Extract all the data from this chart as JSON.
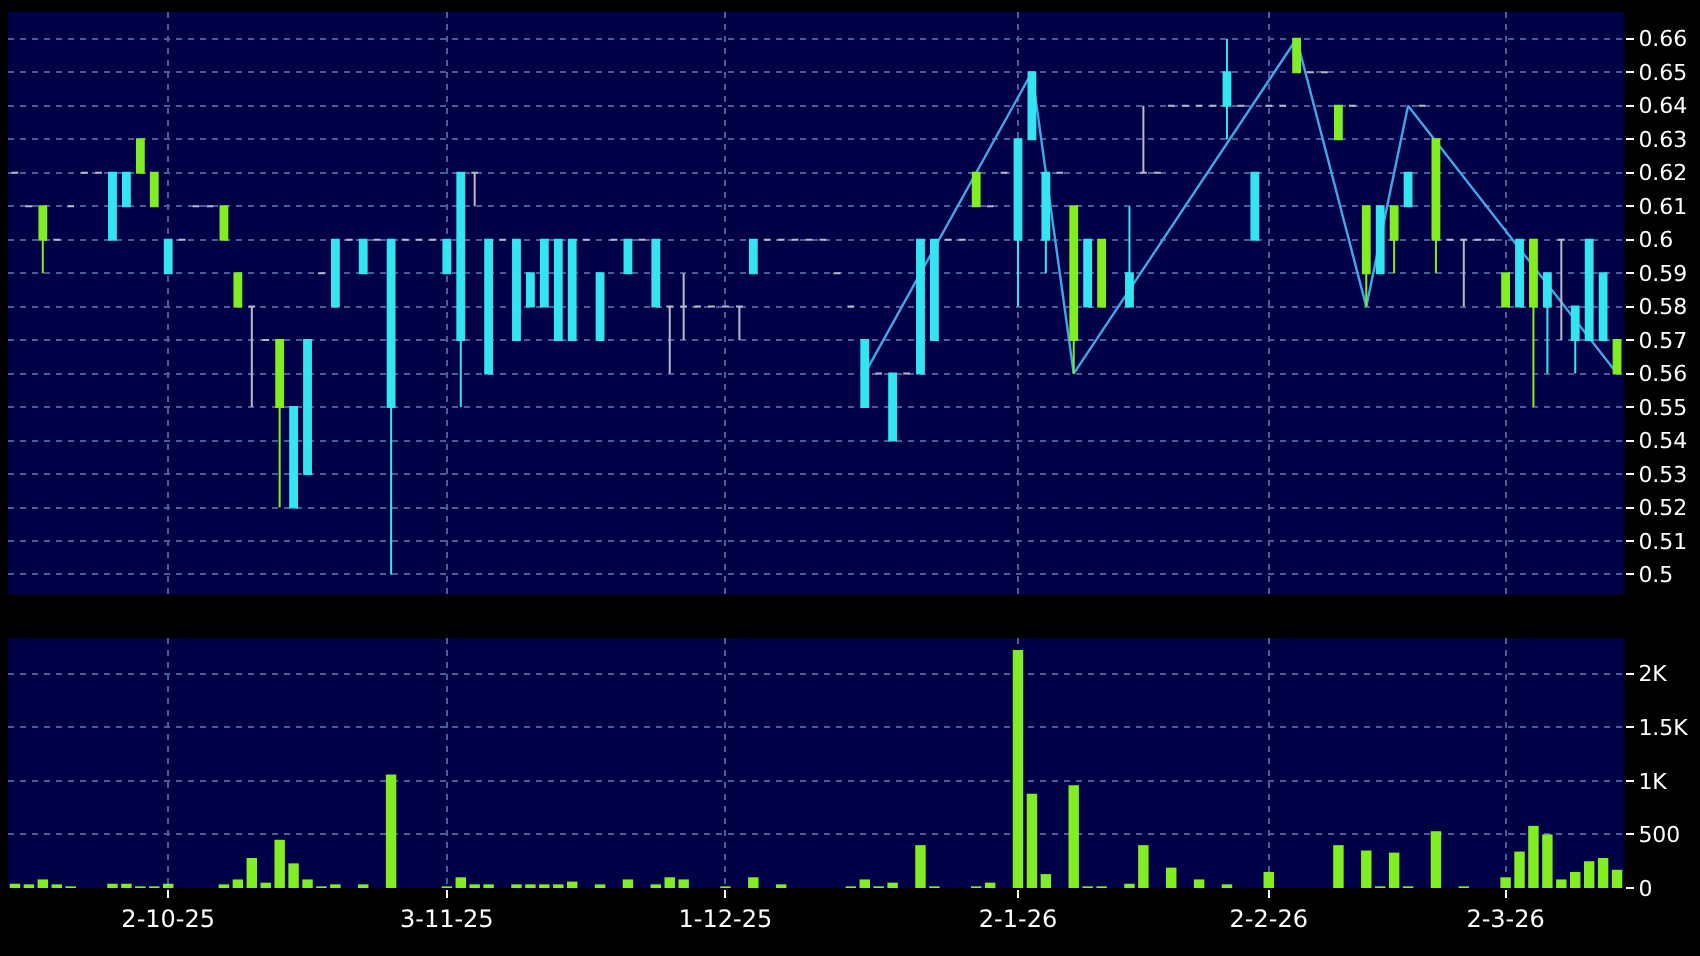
{
  "chart_data": [
    {
      "type": "candlestick",
      "categories": [
        null,
        null,
        null,
        null,
        null,
        null,
        null,
        null,
        null,
        null,
        null,
        "2-10-25",
        null,
        null,
        null,
        null,
        null,
        null,
        null,
        null,
        null,
        null,
        null,
        null,
        null,
        null,
        null,
        null,
        null,
        null,
        null,
        "3-11-25",
        null,
        null,
        null,
        null,
        null,
        null,
        null,
        null,
        null,
        null,
        null,
        null,
        null,
        null,
        null,
        null,
        null,
        null,
        null,
        "1-12-25",
        null,
        null,
        null,
        null,
        null,
        null,
        null,
        null,
        null,
        null,
        null,
        null,
        null,
        null,
        null,
        null,
        null,
        null,
        null,
        null,
        "2-1-26",
        null,
        null,
        null,
        null,
        null,
        null,
        null,
        null,
        null,
        null,
        null,
        null,
        null,
        null,
        null,
        null,
        null,
        "2-2-26",
        null,
        null,
        null,
        null,
        null,
        null,
        null,
        null,
        null,
        null,
        null,
        null,
        null,
        null,
        null,
        null,
        "2-3-26",
        null,
        null,
        null,
        null,
        null,
        null,
        null,
        null
      ],
      "ohlc": [
        [
          0.62,
          0.62,
          0.62,
          0.62
        ],
        [
          0.61,
          0.61,
          0.61,
          0.61
        ],
        [
          0.61,
          0.61,
          0.59,
          0.6
        ],
        [
          0.6,
          0.6,
          0.6,
          0.6
        ],
        [
          0.61,
          0.61,
          0.61,
          0.61
        ],
        [
          0.62,
          0.62,
          0.62,
          0.62
        ],
        [
          0.62,
          0.62,
          0.62,
          0.62
        ],
        [
          0.6,
          0.62,
          0.6,
          0.62
        ],
        [
          0.61,
          0.62,
          0.61,
          0.62
        ],
        [
          0.63,
          0.63,
          0.62,
          0.62
        ],
        [
          0.62,
          0.62,
          0.61,
          0.61
        ],
        [
          0.59,
          0.6,
          0.59,
          0.6
        ],
        [
          0.6,
          0.6,
          0.6,
          0.6
        ],
        [
          0.61,
          0.61,
          0.61,
          0.61
        ],
        [
          0.61,
          0.61,
          0.61,
          0.61
        ],
        [
          0.61,
          0.61,
          0.6,
          0.6
        ],
        [
          0.59,
          0.59,
          0.58,
          0.58
        ],
        [
          0.58,
          0.58,
          0.55,
          0.58
        ],
        [
          0.57,
          0.57,
          0.57,
          0.57
        ],
        [
          0.57,
          0.57,
          0.52,
          0.55
        ],
        [
          0.52,
          0.55,
          0.52,
          0.55
        ],
        [
          0.53,
          0.57,
          0.53,
          0.57
        ],
        [
          0.59,
          0.59,
          0.59,
          0.59
        ],
        [
          0.58,
          0.6,
          0.58,
          0.6
        ],
        [
          0.6,
          0.6,
          0.6,
          0.6
        ],
        [
          0.59,
          0.6,
          0.59,
          0.6
        ],
        [
          0.6,
          0.6,
          0.6,
          0.6
        ],
        [
          0.55,
          0.6,
          0.5,
          0.6
        ],
        [
          0.6,
          0.6,
          0.6,
          0.6
        ],
        [
          0.6,
          0.6,
          0.6,
          0.6
        ],
        [
          0.6,
          0.6,
          0.6,
          0.6
        ],
        [
          0.59,
          0.6,
          0.59,
          0.6
        ],
        [
          0.57,
          0.62,
          0.55,
          0.62
        ],
        [
          0.62,
          0.62,
          0.61,
          0.62
        ],
        [
          0.56,
          0.6,
          0.56,
          0.6
        ],
        [
          0.6,
          0.6,
          0.6,
          0.6
        ],
        [
          0.57,
          0.6,
          0.57,
          0.6
        ],
        [
          0.58,
          0.59,
          0.58,
          0.59
        ],
        [
          0.58,
          0.6,
          0.58,
          0.6
        ],
        [
          0.57,
          0.6,
          0.57,
          0.6
        ],
        [
          0.57,
          0.6,
          0.57,
          0.6
        ],
        [
          0.6,
          0.6,
          0.6,
          0.6
        ],
        [
          0.57,
          0.59,
          0.57,
          0.59
        ],
        [
          0.6,
          0.6,
          0.6,
          0.6
        ],
        [
          0.59,
          0.6,
          0.59,
          0.6
        ],
        [
          0.6,
          0.6,
          0.6,
          0.6
        ],
        [
          0.58,
          0.6,
          0.58,
          0.6
        ],
        [
          0.58,
          0.58,
          0.56,
          0.58
        ],
        [
          0.58,
          0.59,
          0.57,
          0.58
        ],
        [
          0.58,
          0.58,
          0.58,
          0.58
        ],
        [
          0.58,
          0.58,
          0.58,
          0.58
        ],
        [
          0.58,
          0.58,
          0.58,
          0.58
        ],
        [
          0.58,
          0.58,
          0.57,
          0.58
        ],
        [
          0.59,
          0.6,
          0.59,
          0.6
        ],
        [
          0.6,
          0.6,
          0.6,
          0.6
        ],
        [
          0.6,
          0.6,
          0.6,
          0.6
        ],
        [
          0.6,
          0.6,
          0.6,
          0.6
        ],
        [
          0.6,
          0.6,
          0.6,
          0.6
        ],
        [
          0.6,
          0.6,
          0.6,
          0.6
        ],
        [
          0.59,
          0.59,
          0.59,
          0.59
        ],
        [
          0.58,
          0.58,
          0.58,
          0.58
        ],
        [
          0.55,
          0.57,
          0.55,
          0.57
        ],
        [
          0.56,
          0.56,
          0.56,
          0.56
        ],
        [
          0.54,
          0.56,
          0.54,
          0.56
        ],
        [
          0.56,
          0.56,
          0.56,
          0.56
        ],
        [
          0.56,
          0.6,
          0.56,
          0.6
        ],
        [
          0.57,
          0.6,
          0.57,
          0.6
        ],
        [
          0.6,
          0.6,
          0.6,
          0.6
        ],
        [
          0.6,
          0.6,
          0.6,
          0.6
        ],
        [
          0.62,
          0.62,
          0.61,
          0.61
        ],
        [
          0.61,
          0.61,
          0.61,
          0.61
        ],
        [
          0.62,
          0.62,
          0.62,
          0.62
        ],
        [
          0.6,
          0.63,
          0.58,
          0.63
        ],
        [
          0.63,
          0.65,
          0.63,
          0.65
        ],
        [
          0.6,
          0.62,
          0.59,
          0.62
        ],
        [
          0.62,
          0.62,
          0.62,
          0.62
        ],
        [
          0.61,
          0.61,
          0.56,
          0.57
        ],
        [
          0.58,
          0.6,
          0.58,
          0.6
        ],
        [
          0.6,
          0.6,
          0.58,
          0.58
        ],
        null,
        [
          0.58,
          0.61,
          0.58,
          0.59
        ],
        [
          0.62,
          0.64,
          0.62,
          0.62
        ],
        [
          0.62,
          0.62,
          0.62,
          0.62
        ],
        [
          0.64,
          0.64,
          0.64,
          0.64
        ],
        [
          0.64,
          0.64,
          0.64,
          0.64
        ],
        [
          0.64,
          0.64,
          0.64,
          0.64
        ],
        [
          0.64,
          0.64,
          0.64,
          0.64
        ],
        [
          0.64,
          0.66,
          0.63,
          0.65
        ],
        [
          0.64,
          0.64,
          0.64,
          0.64
        ],
        [
          0.6,
          0.62,
          0.6,
          0.62
        ],
        [
          0.64,
          0.64,
          0.64,
          0.64
        ],
        [
          0.64,
          0.64,
          0.64,
          0.64
        ],
        [
          0.66,
          0.66,
          0.65,
          0.65
        ],
        [
          0.65,
          0.65,
          0.65,
          0.65
        ],
        [
          0.65,
          0.65,
          0.65,
          0.65
        ],
        [
          0.64,
          0.64,
          0.63,
          0.63
        ],
        [
          0.64,
          0.64,
          0.64,
          0.64
        ],
        [
          0.61,
          0.61,
          0.58,
          0.59
        ],
        [
          0.59,
          0.61,
          0.59,
          0.61
        ],
        [
          0.61,
          0.61,
          0.59,
          0.6
        ],
        [
          0.61,
          0.62,
          0.61,
          0.62
        ],
        [
          0.64,
          0.64,
          0.64,
          0.64
        ],
        [
          0.63,
          0.63,
          0.59,
          0.6
        ],
        [
          0.6,
          0.6,
          0.6,
          0.6
        ],
        [
          0.6,
          0.6,
          0.58,
          0.6
        ],
        [
          0.6,
          0.6,
          0.6,
          0.6
        ],
        [
          0.6,
          0.6,
          0.6,
          0.6
        ],
        [
          0.59,
          0.59,
          0.58,
          0.58
        ],
        [
          0.58,
          0.6,
          0.58,
          0.6
        ],
        [
          0.6,
          0.6,
          0.55,
          0.58
        ],
        [
          0.58,
          0.59,
          0.56,
          0.59
        ],
        [
          0.6,
          0.6,
          0.57,
          0.6
        ],
        [
          0.57,
          0.58,
          0.56,
          0.58
        ],
        [
          0.57,
          0.6,
          0.57,
          0.6
        ],
        [
          0.57,
          0.59,
          0.57,
          0.59
        ],
        [
          0.57,
          0.57,
          0.56,
          0.56
        ]
      ],
      "colors": [
        "#b8b8c8",
        "#b8b8c8",
        "#80ee20",
        "#b8b8c8",
        "#b8b8c8",
        "#b8b8c8",
        "#b8b8c8",
        "#33e5f0",
        "#33e5f0",
        "#80ee20",
        "#80ee20",
        "#33e5f0",
        "#b8b8c8",
        "#b8b8c8",
        "#b8b8c8",
        "#80ee20",
        "#80ee20",
        "#b8b8c8",
        "#b8b8c8",
        "#80ee20",
        "#33e5f0",
        "#33e5f0",
        "#b8b8c8",
        "#33e5f0",
        "#b8b8c8",
        "#33e5f0",
        "#b8b8c8",
        "#33e5f0",
        "#b8b8c8",
        "#b8b8c8",
        "#b8b8c8",
        "#33e5f0",
        "#33e5f0",
        "#b8b8c8",
        "#33e5f0",
        "#b8b8c8",
        "#33e5f0",
        "#33e5f0",
        "#33e5f0",
        "#33e5f0",
        "#33e5f0",
        "#b8b8c8",
        "#33e5f0",
        "#b8b8c8",
        "#33e5f0",
        "#b8b8c8",
        "#33e5f0",
        "#b8b8c8",
        "#b8b8c8",
        "#b8b8c8",
        "#b8b8c8",
        "#b8b8c8",
        "#b8b8c8",
        "#33e5f0",
        "#b8b8c8",
        "#b8b8c8",
        "#b8b8c8",
        "#b8b8c8",
        "#b8b8c8",
        "#b8b8c8",
        "#b8b8c8",
        "#33e5f0",
        "#b8b8c8",
        "#33e5f0",
        "#b8b8c8",
        "#33e5f0",
        "#33e5f0",
        "#b8b8c8",
        "#b8b8c8",
        "#80ee20",
        "#b8b8c8",
        "#b8b8c8",
        "#33e5f0",
        "#33e5f0",
        "#33e5f0",
        "#b8b8c8",
        "#80ee20",
        "#33e5f0",
        "#80ee20",
        null,
        "#33e5f0",
        "#b8b8c8",
        "#b8b8c8",
        "#b8b8c8",
        "#b8b8c8",
        "#b8b8c8",
        "#b8b8c8",
        "#33e5f0",
        "#b8b8c8",
        "#33e5f0",
        "#b8b8c8",
        "#b8b8c8",
        "#80ee20",
        "#b8b8c8",
        "#b8b8c8",
        "#80ee20",
        "#b8b8c8",
        "#80ee20",
        "#33e5f0",
        "#80ee20",
        "#33e5f0",
        "#b8b8c8",
        "#80ee20",
        "#b8b8c8",
        "#b8b8c8",
        "#b8b8c8",
        "#b8b8c8",
        "#80ee20",
        "#33e5f0",
        "#80ee20",
        "#33e5f0",
        "#b8b8c8",
        "#33e5f0",
        "#33e5f0",
        "#33e5f0",
        "#80ee20"
      ],
      "series": [
        {
          "type": "line",
          "color": "#40a8e8",
          "values": [
            null,
            null,
            null,
            null,
            null,
            null,
            null,
            null,
            null,
            null,
            null,
            null,
            null,
            null,
            null,
            null,
            null,
            null,
            null,
            null,
            null,
            null,
            null,
            null,
            null,
            null,
            null,
            null,
            null,
            null,
            null,
            null,
            null,
            null,
            null,
            null,
            null,
            null,
            null,
            null,
            null,
            null,
            null,
            null,
            null,
            null,
            null,
            null,
            null,
            null,
            null,
            null,
            null,
            null,
            null,
            null,
            null,
            null,
            null,
            null,
            null,
            0.56,
            null,
            null,
            null,
            null,
            null,
            null,
            null,
            null,
            null,
            null,
            null,
            0.65,
            null,
            null,
            0.56,
            null,
            null,
            null,
            null,
            null,
            null,
            null,
            null,
            null,
            null,
            null,
            null,
            null,
            null,
            null,
            0.66,
            null,
            null,
            null,
            null,
            0.58,
            null,
            null,
            0.64,
            null,
            null,
            null,
            null,
            null,
            null,
            null,
            null,
            null,
            null,
            null,
            null,
            null,
            null,
            0.56
          ]
        }
      ],
      "ylim": [
        0.494,
        0.668
      ],
      "yticks": [
        0.5,
        0.51,
        0.52,
        0.53,
        0.54,
        0.55,
        0.56,
        0.57,
        0.58,
        0.59,
        0.6,
        0.61,
        0.62,
        0.63,
        0.64,
        0.65,
        0.66
      ],
      "grid": true,
      "tick_labels": "y"
    },
    {
      "type": "bar",
      "categories": [
        null,
        null,
        null,
        null,
        null,
        null,
        null,
        null,
        null,
        null,
        null,
        "2-10-25",
        null,
        null,
        null,
        null,
        null,
        null,
        null,
        null,
        null,
        null,
        null,
        null,
        null,
        null,
        null,
        null,
        null,
        null,
        null,
        "3-11-25",
        null,
        null,
        null,
        null,
        null,
        null,
        null,
        null,
        null,
        null,
        null,
        null,
        null,
        null,
        null,
        null,
        null,
        null,
        null,
        "1-12-25",
        null,
        null,
        null,
        null,
        null,
        null,
        null,
        null,
        null,
        null,
        null,
        null,
        null,
        null,
        null,
        null,
        null,
        null,
        null,
        null,
        "2-1-26",
        null,
        null,
        null,
        null,
        null,
        null,
        null,
        null,
        null,
        null,
        null,
        null,
        null,
        null,
        null,
        null,
        null,
        "2-2-26",
        null,
        null,
        null,
        null,
        null,
        null,
        null,
        null,
        null,
        null,
        null,
        null,
        null,
        null,
        null,
        null,
        "2-3-26",
        null,
        null,
        null,
        null,
        null,
        null,
        null,
        null
      ],
      "color": "#80ee20",
      "values": [
        40,
        20,
        80,
        20,
        10,
        0,
        0,
        40,
        40,
        10,
        10,
        40,
        0,
        0,
        0,
        20,
        80,
        280,
        50,
        450,
        230,
        80,
        10,
        20,
        0,
        20,
        0,
        1060,
        0,
        0,
        0,
        10,
        100,
        20,
        20,
        0,
        20,
        20,
        20,
        20,
        60,
        0,
        20,
        0,
        80,
        0,
        20,
        100,
        80,
        0,
        0,
        10,
        0,
        100,
        0,
        20,
        0,
        0,
        0,
        0,
        10,
        80,
        10,
        50,
        0,
        400,
        10,
        0,
        0,
        10,
        50,
        0,
        2220,
        880,
        130,
        0,
        960,
        10,
        10,
        0,
        40,
        400,
        0,
        190,
        0,
        80,
        0,
        30,
        0,
        0,
        150,
        0,
        0,
        0,
        0,
        400,
        0,
        350,
        10,
        330,
        10,
        0,
        530,
        0,
        10,
        0,
        0,
        100,
        340,
        580,
        500,
        80,
        150,
        250,
        280,
        170
      ],
      "ylim": [
        0,
        2330
      ],
      "yticks": [
        0,
        500,
        {
          "value": 1000,
          "label": "1K"
        },
        {
          "value": 1500,
          "label": "1.5K"
        },
        {
          "value": 2000,
          "label": "2K"
        }
      ],
      "grid": true
    }
  ]
}
